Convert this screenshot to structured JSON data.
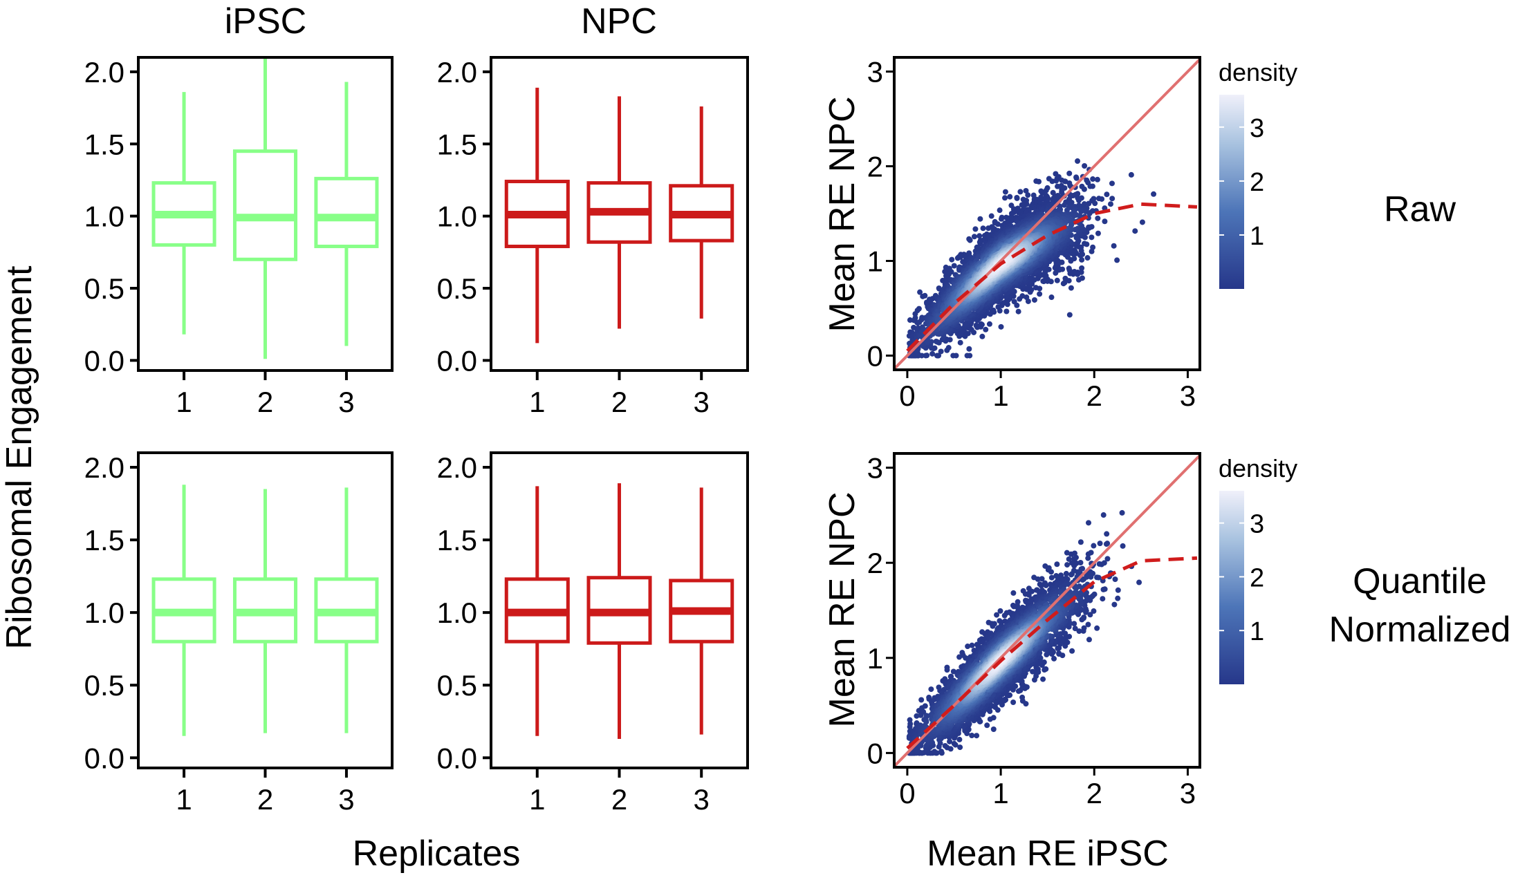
{
  "chart_data": [
    {
      "type": "box",
      "panel": "iPSC raw",
      "title": "iPSC",
      "color": "#88ff88",
      "categories": [
        "1",
        "2",
        "3"
      ],
      "ylim": [
        -0.07,
        2.1
      ],
      "yticks": [
        "0.0",
        "0.5",
        "1.0",
        "1.5",
        "2.0"
      ],
      "boxes": [
        {
          "min": 0.18,
          "q1": 0.8,
          "median": 1.01,
          "q3": 1.23,
          "max": 1.86
        },
        {
          "min": 0.01,
          "q1": 0.7,
          "median": 0.99,
          "q3": 1.45,
          "max": 2.1
        },
        {
          "min": 0.1,
          "q1": 0.79,
          "median": 0.99,
          "q3": 1.26,
          "max": 1.93
        }
      ]
    },
    {
      "type": "box",
      "panel": "NPC raw",
      "title": "NPC",
      "color": "#cc1a1a",
      "categories": [
        "1",
        "2",
        "3"
      ],
      "ylim": [
        -0.07,
        2.1
      ],
      "yticks": [
        "0.0",
        "0.5",
        "1.0",
        "1.5",
        "2.0"
      ],
      "boxes": [
        {
          "min": 0.12,
          "q1": 0.79,
          "median": 1.01,
          "q3": 1.24,
          "max": 1.89
        },
        {
          "min": 0.22,
          "q1": 0.82,
          "median": 1.03,
          "q3": 1.23,
          "max": 1.83
        },
        {
          "min": 0.29,
          "q1": 0.83,
          "median": 1.01,
          "q3": 1.21,
          "max": 1.76
        }
      ]
    },
    {
      "type": "box",
      "panel": "iPSC quantile normalized",
      "title": "",
      "color": "#88ff88",
      "categories": [
        "1",
        "2",
        "3"
      ],
      "ylim": [
        -0.07,
        2.1
      ],
      "yticks": [
        "0.0",
        "0.5",
        "1.0",
        "1.5",
        "2.0"
      ],
      "boxes": [
        {
          "min": 0.15,
          "q1": 0.8,
          "median": 1.0,
          "q3": 1.23,
          "max": 1.88
        },
        {
          "min": 0.17,
          "q1": 0.8,
          "median": 1.0,
          "q3": 1.23,
          "max": 1.85
        },
        {
          "min": 0.17,
          "q1": 0.8,
          "median": 1.0,
          "q3": 1.23,
          "max": 1.86
        }
      ]
    },
    {
      "type": "box",
      "panel": "NPC quantile normalized",
      "title": "",
      "color": "#cc1a1a",
      "categories": [
        "1",
        "2",
        "3"
      ],
      "ylim": [
        -0.07,
        2.1
      ],
      "yticks": [
        "0.0",
        "0.5",
        "1.0",
        "1.5",
        "2.0"
      ],
      "boxes": [
        {
          "min": 0.15,
          "q1": 0.8,
          "median": 1.0,
          "q3": 1.23,
          "max": 1.87
        },
        {
          "min": 0.13,
          "q1": 0.79,
          "median": 1.0,
          "q3": 1.24,
          "max": 1.89
        },
        {
          "min": 0.16,
          "q1": 0.8,
          "median": 1.01,
          "q3": 1.22,
          "max": 1.86
        }
      ]
    },
    {
      "type": "scatter",
      "panel": "raw",
      "xlim": [
        -0.14,
        3.13
      ],
      "ylim": [
        -0.15,
        3.15
      ],
      "xticks": [
        "0",
        "1",
        "2",
        "3"
      ],
      "yticks": [
        "0",
        "1",
        "2",
        "3"
      ],
      "identity_line_color": "#e07070",
      "fit_color": "#d01c1c",
      "fit": [
        [
          0,
          0.05
        ],
        [
          0.5,
          0.55
        ],
        [
          1,
          0.97
        ],
        [
          1.5,
          1.27
        ],
        [
          2,
          1.5
        ],
        [
          2.5,
          1.6
        ],
        [
          3.1,
          1.57
        ]
      ],
      "colorbar": {
        "title": "density",
        "ticks": [
          "1",
          "2",
          "3"
        ],
        "max": 3.6,
        "low": "#26378a",
        "high": "#f0f0fa"
      }
    },
    {
      "type": "scatter",
      "panel": "quantile normalized",
      "xlim": [
        -0.14,
        3.13
      ],
      "ylim": [
        -0.15,
        3.15
      ],
      "xticks": [
        "0",
        "1",
        "2",
        "3"
      ],
      "yticks": [
        "0",
        "1",
        "2",
        "3"
      ],
      "identity_line_color": "#e07070",
      "fit_color": "#d01c1c",
      "fit": [
        [
          0,
          0.05
        ],
        [
          0.5,
          0.5
        ],
        [
          1,
          0.97
        ],
        [
          1.5,
          1.4
        ],
        [
          2,
          1.8
        ],
        [
          2.5,
          2.02
        ],
        [
          3.1,
          2.05
        ]
      ],
      "colorbar": {
        "title": "density",
        "ticks": [
          "1",
          "2",
          "3"
        ],
        "max": 3.6,
        "low": "#26378a",
        "high": "#f0f0fa"
      }
    }
  ],
  "labels": {
    "ylabel_box": "Ribosomal Engagement",
    "xlabel_box": "Replicates",
    "ylabel_scatter": "Mean RE NPC",
    "xlabel_scatter": "Mean RE iPSC",
    "row1": "Raw",
    "row2a": "Quantile",
    "row2b": "Normalized"
  }
}
